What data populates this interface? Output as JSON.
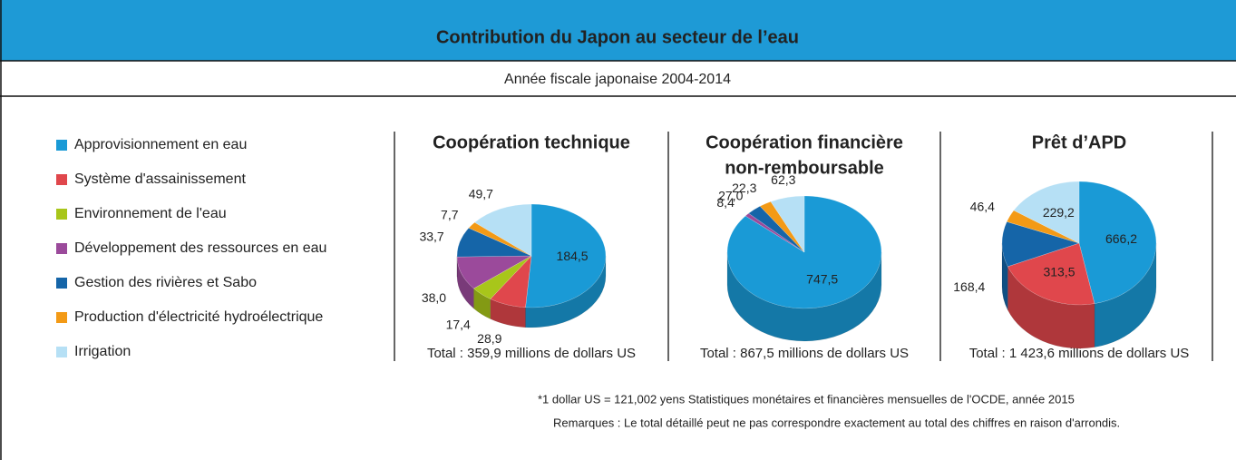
{
  "title": "Contribution du Japon au secteur de l’eau",
  "subtitle": "Année fiscale japonaise 2004-2014",
  "legend": {
    "categories": [
      "Approvisionnement en eau",
      "Système d'assainissement",
      "Environnement de l'eau",
      "Développement des ressources en eau",
      "Gestion des rivières et Sabo",
      "Production d'électricité hydroélectrique",
      "Irrigation"
    ],
    "colors": [
      "#1a9ad6",
      "#e0474c",
      "#a8c61a",
      "#9b4a9b",
      "#1565a8",
      "#f39a16",
      "#b6e0f5"
    ]
  },
  "chart_data": [
    {
      "type": "pie",
      "title": [
        "Coopération technique"
      ],
      "values": [
        184.5,
        28.9,
        17.4,
        38.0,
        33.7,
        7.7,
        49.7
      ],
      "value_labels": [
        "184,5",
        "28,9",
        "17,4",
        "38,0",
        "33,7",
        "7,7",
        "49,7"
      ],
      "total": "Total : 359,9 millions de dollars US"
    },
    {
      "type": "pie",
      "title": [
        "Coopération financière",
        "non-remboursable"
      ],
      "values": [
        747.5,
        null,
        null,
        8.4,
        27.0,
        22.3,
        62.3
      ],
      "value_labels": [
        "747,5",
        null,
        null,
        "8,4",
        "27,0",
        "22,3",
        "62,3"
      ],
      "total": "Total : 867,5 millions de dollars US"
    },
    {
      "type": "pie",
      "title": [
        "Prêt d’APD"
      ],
      "values": [
        666.2,
        313.5,
        null,
        null,
        168.4,
        46.4,
        229.2
      ],
      "value_labels": [
        "666,2",
        "313,5",
        null,
        null,
        "168,4",
        "46,4",
        "229,2"
      ],
      "total": "Total : 1 423,6 millions de dollars US"
    }
  ],
  "notes": [
    "*1 dollar US = 121,002 yens Statistiques monétaires et financières mensuelles de l'OCDE, année 2015",
    "Remarques : Le total détaillé peut ne pas correspondre exactement au total des chiffres en raison d'arrondis."
  ]
}
